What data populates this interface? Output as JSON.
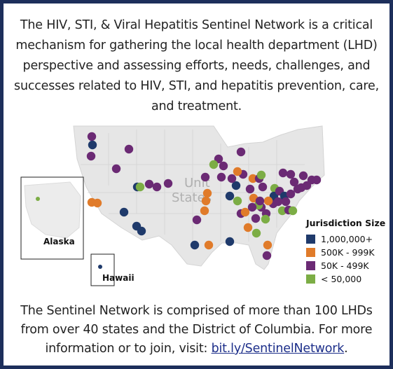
{
  "intro_text": "The HIV, STI, & Viral Hepatitis Sentinel Network is a critical mechanism for gathering the local health department (LHD) perspective and assessing efforts, needs, challenges, and successes related to HIV, STI, and hepatitis prevention, care, and treatment.",
  "outro_text": "The Sentinel Network is comprised of more than 100 LHDs from over 40 states and the District of Columbia. For more information or to join, visit: ",
  "outro_link": "bit.ly/SentinelNetwork",
  "outro_end": ".",
  "map": {
    "country_label_line1": "Unit",
    "country_label_line2": "States",
    "inset_alaska": "Alaska",
    "inset_hawaii": "Hawaii"
  },
  "legend": {
    "title": "Jurisdiction Size",
    "items": [
      {
        "label": "1,000,000+",
        "color": "#1f3a6b"
      },
      {
        "label": "500K - 999K",
        "color": "#e07b2a"
      },
      {
        "label": "50K - 499K",
        "color": "#6b2a74"
      },
      {
        "label": "< 50,000",
        "color": "#7cad45"
      }
    ]
  },
  "colors": {
    "border": "#1d2f5b",
    "land": "#e6e6e6",
    "water": "#f5f5f5"
  }
}
